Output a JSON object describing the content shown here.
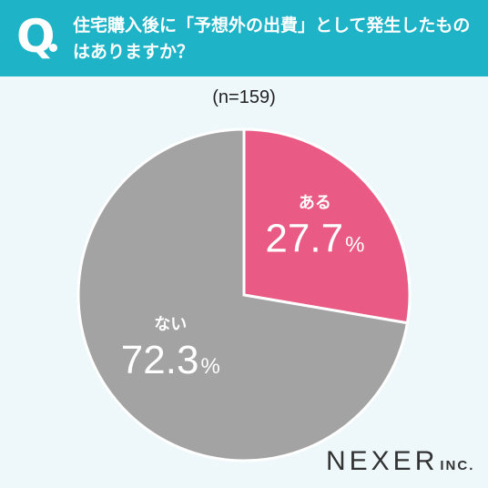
{
  "header": {
    "q_mark": "Q",
    "question": "住宅購入後に「予想外の出費」として発生したものはありますか？"
  },
  "sample_label": "(n=159)",
  "chart_data": {
    "type": "pie",
    "slices": [
      {
        "label": "ある",
        "value": 27.7,
        "display": "27.7",
        "color": "#e95b84"
      },
      {
        "label": "ない",
        "value": 72.3,
        "display": "72.3",
        "color": "#a3a3a3"
      }
    ],
    "unit": "%"
  },
  "brand": {
    "name": "NEXER",
    "suffix": "INC."
  }
}
